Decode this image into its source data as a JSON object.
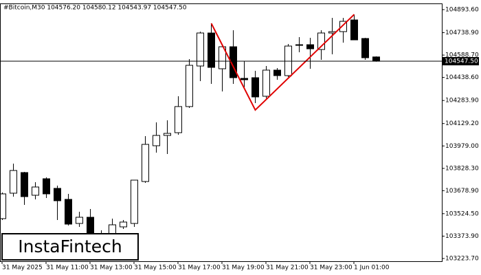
{
  "chart_data": {
    "type": "candlestick",
    "title": "#Bitcoin,M30  104576.20 104580.12 104543.97 104547.50",
    "logo": "InstaFintech",
    "categories": [
      "31 May 2025",
      null,
      null,
      null,
      "31 May 11:00",
      null,
      null,
      null,
      "31 May 13:00",
      null,
      null,
      null,
      "31 May 15:00",
      null,
      null,
      null,
      "31 May 17:00",
      null,
      null,
      null,
      "31 May 19:00",
      null,
      null,
      null,
      "31 May 21:00",
      null,
      null,
      null,
      "31 May 23:00",
      null,
      null,
      null,
      "1 Jun 01:00",
      null,
      null
    ],
    "open": [
      103491.3,
      103662.0,
      103800.4,
      103648.2,
      103758.9,
      103694.3,
      103620.5,
      103459.0,
      103500.5,
      103380.6,
      103389.9,
      103436.0,
      103459.0,
      103740.4,
      103980.3,
      104049.5,
      104067.9,
      104243.2,
      104515.3,
      104736.8,
      104496.9,
      104644.5,
      104432.3,
      104436.9,
      104312.4,
      104487.7,
      104450.8,
      104653.7,
      104658.3,
      104626.0,
      104736.8,
      104746.0,
      104824.4,
      104699.9,
      104576.2
    ],
    "high": [
      103666.6,
      103860.3,
      103805.0,
      103735.8,
      103768.1,
      103712.7,
      103657.4,
      103537.4,
      103555.9,
      103412.9,
      103491.3,
      103482.1,
      103749.6,
      104044.8,
      104137.1,
      104151.0,
      104312.4,
      104561.4,
      104746.0,
      104801.3,
      104663.0,
      104755.2,
      104547.6,
      104483.0,
      104515.3,
      104501.5,
      104663.0,
      104709.1,
      104704.5,
      104755.2,
      104838.2,
      104838.2,
      104861.3,
      104704.5,
      104580.12
    ],
    "low": [
      103482.1,
      103638.9,
      103583.6,
      103620.5,
      103629.7,
      103482.1,
      103445.2,
      103436.0,
      103366.8,
      103320.6,
      103366.8,
      103422.1,
      103436.0,
      103731.2,
      103934.2,
      103924.9,
      104054.1,
      104234.0,
      104413.9,
      104395.4,
      104344.7,
      104395.4,
      104372.3,
      104266.3,
      104298.5,
      104423.1,
      104441.5,
      104607.6,
      104496.9,
      104556.8,
      104593.7,
      104672.2,
      104690.6,
      104556.8,
      104543.97
    ],
    "close": [
      103657.4,
      103814.2,
      103638.9,
      103703.5,
      103657.4,
      103611.3,
      103454.4,
      103500.5,
      103380.6,
      103343.7,
      103449.8,
      103468.3,
      103749.6,
      103989.5,
      104049.5,
      104063.3,
      104243.2,
      104520.0,
      104736.8,
      104506.1,
      104644.5,
      104436.9,
      104423.1,
      104307.8,
      104487.7,
      104450.8,
      104649.1,
      104658.3,
      104630.7,
      104736.8,
      104746.0,
      104815.2,
      104690.6,
      104570.7,
      104547.5
    ],
    "up_color": "#ffffff",
    "down_color": "#000000",
    "pattern": {
      "color": "#e00000",
      "connect_gaps": true,
      "values": [
        null,
        null,
        null,
        null,
        null,
        null,
        null,
        null,
        null,
        null,
        null,
        null,
        null,
        null,
        null,
        null,
        null,
        null,
        null,
        104801.3,
        null,
        null,
        null,
        104220.1,
        null,
        null,
        null,
        null,
        null,
        null,
        null,
        null,
        104861.3,
        null,
        null
      ]
    },
    "price_line": {
      "value": 104547.5,
      "label": "104547.50"
    },
    "ylim": [
      103205.3,
      104935.1
    ],
    "yticks": [
      {
        "value": 104893.6,
        "label": "104893.60"
      },
      {
        "value": 104738.9,
        "label": "104738.90"
      },
      {
        "value": 104588.7,
        "label": "104588.70"
      },
      {
        "value": 104438.6,
        "label": "104438.60"
      },
      {
        "value": 104283.9,
        "label": "104283.90"
      },
      {
        "value": 104129.2,
        "label": "104129.20"
      },
      {
        "value": 103979.0,
        "label": "103979.00"
      },
      {
        "value": 103828.3,
        "label": "103828.30"
      },
      {
        "value": 103678.9,
        "label": "103678.90"
      },
      {
        "value": 103524.5,
        "label": "103524.50"
      },
      {
        "value": 103373.9,
        "label": "103373.90"
      },
      {
        "value": 103223.7,
        "label": "103223.70"
      }
    ]
  }
}
